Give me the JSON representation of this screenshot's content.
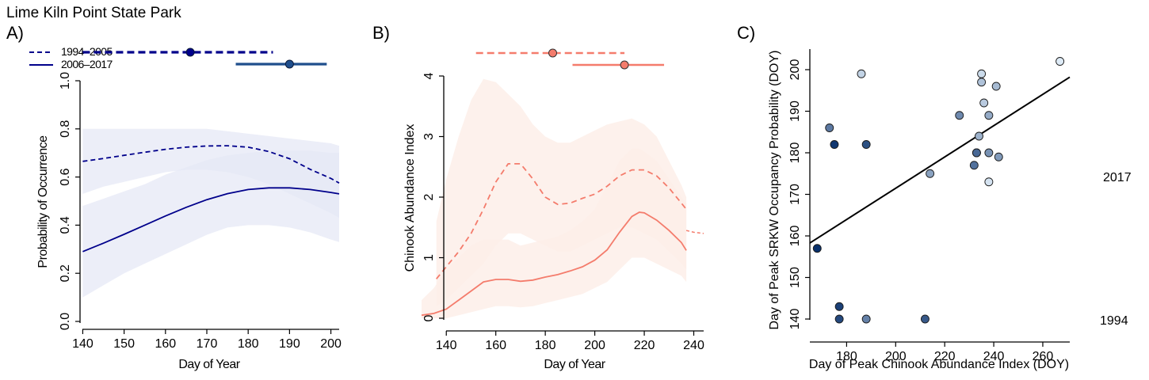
{
  "figure_title": "Lime Kiln Point State Park",
  "chart_data": [
    {
      "panel": "A)",
      "type": "line",
      "xlabel": "Day of Year",
      "ylabel": "Probability of Occurrence",
      "xlim": [
        138,
        202
      ],
      "ylim": [
        0,
        1
      ],
      "xticks": [
        140,
        150,
        160,
        170,
        180,
        190,
        200
      ],
      "yticks": [
        0.0,
        0.2,
        0.4,
        0.6,
        0.8,
        1.0
      ],
      "ytick_labels": [
        "0.0",
        "0.2",
        "0.4",
        "0.6",
        "0.8",
        "1.0"
      ],
      "legend": {
        "position": "top-left",
        "entries": [
          "1994–2005",
          "2006–2017"
        ]
      },
      "colors": {
        "line": "#00008b",
        "band": "#e6e8f5",
        "ci_dark": "#00008b",
        "ci_light": "#1f4e8c"
      },
      "series": [
        {
          "name": "1994–2005",
          "dash": true,
          "x": [
            140,
            145,
            150,
            155,
            160,
            165,
            170,
            175,
            180,
            185,
            190,
            195,
            200,
            202
          ],
          "y": [
            0.665,
            0.677,
            0.69,
            0.703,
            0.715,
            0.724,
            0.729,
            0.73,
            0.724,
            0.706,
            0.676,
            0.632,
            0.594,
            0.575
          ],
          "lower": [
            0.53,
            0.56,
            0.58,
            0.6,
            0.62,
            0.63,
            0.63,
            0.62,
            0.6,
            0.57,
            0.53,
            0.49,
            0.45,
            0.43
          ],
          "upper": [
            0.8,
            0.8,
            0.8,
            0.8,
            0.8,
            0.8,
            0.8,
            0.79,
            0.78,
            0.77,
            0.76,
            0.75,
            0.74,
            0.73
          ],
          "interval": {
            "low": 140,
            "high": 186,
            "peak": 166
          }
        },
        {
          "name": "2006–2017",
          "dash": false,
          "x": [
            140,
            145,
            150,
            155,
            160,
            165,
            170,
            175,
            180,
            185,
            190,
            195,
            200,
            202
          ],
          "y": [
            0.29,
            0.325,
            0.362,
            0.4,
            0.438,
            0.474,
            0.506,
            0.531,
            0.548,
            0.555,
            0.555,
            0.548,
            0.536,
            0.53
          ],
          "lower": [
            0.1,
            0.15,
            0.2,
            0.24,
            0.28,
            0.32,
            0.36,
            0.39,
            0.4,
            0.4,
            0.39,
            0.37,
            0.34,
            0.33
          ],
          "upper": [
            0.48,
            0.51,
            0.54,
            0.57,
            0.61,
            0.64,
            0.67,
            0.69,
            0.7,
            0.71,
            0.71,
            0.71,
            0.7,
            0.7
          ],
          "interval": {
            "low": 177,
            "high": 199,
            "peak": 190
          }
        }
      ]
    },
    {
      "panel": "B)",
      "type": "line",
      "xlabel": "Day of Year",
      "ylabel": "Chinook Abundance Index",
      "xlim": [
        130,
        244
      ],
      "ylim": [
        0,
        4
      ],
      "xticks": [
        140,
        160,
        180,
        200,
        220,
        240
      ],
      "yticks": [
        0,
        1,
        2,
        3,
        4
      ],
      "colors": {
        "line": "#f47c6c",
        "band": "#fdeee9",
        "point": "#f47c6c"
      },
      "series": [
        {
          "name": "1994–2005",
          "dash": true,
          "x": [
            136,
            140,
            145,
            150,
            155,
            160,
            165,
            170,
            175,
            180,
            185,
            190,
            195,
            200,
            205,
            210,
            215,
            220,
            225,
            230,
            235,
            237
          ],
          "y": [
            0.65,
            0.85,
            1.1,
            1.4,
            1.8,
            2.25,
            2.55,
            2.55,
            2.3,
            2.0,
            1.88,
            1.9,
            1.98,
            2.05,
            2.18,
            2.35,
            2.45,
            2.45,
            2.35,
            2.15,
            1.9,
            1.8
          ],
          "lower": [
            0.2,
            0.3,
            0.5,
            0.7,
            0.9,
            1.2,
            1.4,
            1.4,
            1.3,
            1.2,
            1.1,
            1.1,
            1.2,
            1.3,
            1.4,
            1.5,
            1.5,
            1.4,
            1.3,
            1.1,
            0.9,
            0.8
          ],
          "upper": [
            1.6,
            2.3,
            3.0,
            3.6,
            3.95,
            3.9,
            3.7,
            3.5,
            3.2,
            3.0,
            2.9,
            2.9,
            3.0,
            3.1,
            3.2,
            3.25,
            3.3,
            3.2,
            3.0,
            2.6,
            2.2,
            2.0
          ],
          "interval": {
            "low": 152,
            "high": 212,
            "peak": 183
          }
        },
        {
          "name": "2006–2017",
          "dash": false,
          "x": [
            130,
            135,
            140,
            145,
            150,
            155,
            160,
            165,
            170,
            175,
            180,
            185,
            190,
            195,
            200,
            205,
            210,
            215,
            218,
            220,
            225,
            230,
            235,
            237
          ],
          "y": [
            0.05,
            0.08,
            0.15,
            0.3,
            0.45,
            0.6,
            0.64,
            0.64,
            0.61,
            0.63,
            0.68,
            0.72,
            0.78,
            0.85,
            0.96,
            1.13,
            1.42,
            1.68,
            1.75,
            1.74,
            1.62,
            1.45,
            1.25,
            1.12
          ],
          "lower": [
            0.0,
            0.0,
            0.0,
            0.05,
            0.1,
            0.15,
            0.2,
            0.2,
            0.18,
            0.2,
            0.25,
            0.3,
            0.35,
            0.4,
            0.5,
            0.6,
            0.8,
            1.0,
            1.0,
            1.0,
            0.9,
            0.8,
            0.7,
            0.6
          ],
          "upper": [
            0.3,
            0.5,
            0.8,
            1.0,
            1.2,
            1.3,
            1.3,
            1.3,
            1.2,
            1.25,
            1.3,
            1.35,
            1.45,
            1.6,
            1.8,
            2.2,
            2.6,
            2.8,
            2.8,
            2.75,
            2.6,
            2.3,
            2.0,
            1.9
          ],
          "interval": {
            "low": 191,
            "high": 228,
            "peak": 212
          }
        }
      ],
      "tail": {
        "x": [
          237,
          240,
          244
        ],
        "y": [
          1.45,
          1.42,
          1.4
        ]
      }
    },
    {
      "panel": "C)",
      "type": "scatter",
      "xlabel": "Day of Peak Chinook Abundance Index (DOY)",
      "ylabel": "Day of Peak SRKW Occupancy Probability (DOY)",
      "xlim": [
        165,
        271
      ],
      "ylim": [
        138,
        204
      ],
      "xticks": [
        180,
        200,
        220,
        240,
        260
      ],
      "yticks": [
        140,
        150,
        160,
        170,
        180,
        190,
        200
      ],
      "colors": {
        "low": "#08306b",
        "high": "#deebf7",
        "fit_line": "#000000"
      },
      "colorbar_labels": {
        "top": "2017",
        "bottom": "1994"
      },
      "fit": {
        "x": [
          165,
          271
        ],
        "y": [
          158.3,
          198.2
        ]
      },
      "points": [
        {
          "x": 168,
          "y": 157,
          "year": 1994
        },
        {
          "x": 175,
          "y": 182,
          "year": 1995
        },
        {
          "x": 177,
          "y": 143,
          "year": 1996
        },
        {
          "x": 177,
          "y": 140,
          "year": 1997
        },
        {
          "x": 188,
          "y": 182,
          "year": 1998
        },
        {
          "x": 212,
          "y": 140,
          "year": 1999
        },
        {
          "x": 233,
          "y": 180,
          "year": 2000
        },
        {
          "x": 233,
          "y": 180,
          "year": 2001
        },
        {
          "x": 232,
          "y": 177,
          "year": 2002
        },
        {
          "x": 173,
          "y": 186,
          "year": 2003
        },
        {
          "x": 188,
          "y": 140,
          "year": 2004
        },
        {
          "x": 226,
          "y": 189,
          "year": 2005
        },
        {
          "x": 238,
          "y": 180,
          "year": 2006
        },
        {
          "x": 242,
          "y": 179,
          "year": 2007
        },
        {
          "x": 214,
          "y": 175,
          "year": 2008
        },
        {
          "x": 238,
          "y": 189,
          "year": 2009
        },
        {
          "x": 234,
          "y": 184,
          "year": 2010
        },
        {
          "x": 241,
          "y": 196,
          "year": 2011
        },
        {
          "x": 235,
          "y": 197,
          "year": 2012
        },
        {
          "x": 236,
          "y": 192,
          "year": 2013
        },
        {
          "x": 186,
          "y": 199,
          "year": 2014
        },
        {
          "x": 235,
          "y": 199,
          "year": 2015
        },
        {
          "x": 238,
          "y": 173,
          "year": 2016
        },
        {
          "x": 267,
          "y": 202,
          "year": 2017
        }
      ]
    }
  ]
}
